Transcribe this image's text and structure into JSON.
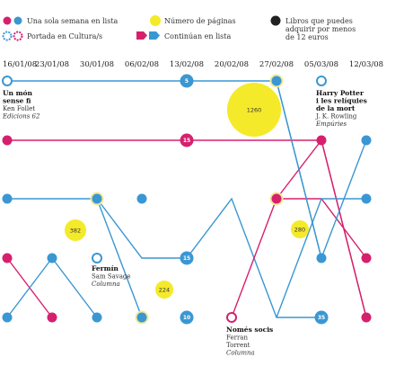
{
  "colors": {
    "magenta": "#d6206e",
    "blue": "#3a97d3",
    "yellow": "#f4ea2a",
    "yellow_ring": "#f1ea95",
    "black": "#222222",
    "grid_line": "#aaaaaa"
  },
  "legend": {
    "one_week": "Una sola semana en lista",
    "cover": "Portada en Cultura/s",
    "pages": "Número de páginas",
    "continue": "Continúan en lista",
    "affordable": "Libros que puedes adquirir por menos de 12 euros"
  },
  "chart_data": {
    "type": "line",
    "dates": [
      "16/01/08",
      "23/01/08",
      "30/01/08",
      "06/02/08",
      "13/02/08",
      "20/02/08",
      "27/02/08",
      "05/03/08",
      "12/03/08"
    ],
    "rank_levels": [
      1,
      2,
      3,
      4,
      5
    ],
    "page_counts": [
      {
        "value": 1260,
        "book": "Un món sense fi"
      },
      {
        "value": 382
      },
      {
        "value": 280
      },
      {
        "value": 224
      }
    ],
    "circle_numbers": [
      "5",
      "15",
      "15",
      "10",
      "35"
    ],
    "books": [
      {
        "title": "Un món sense fi",
        "author": "Ken Follet",
        "publisher": "Edicions 62"
      },
      {
        "title": "Harry Potter i les relíquies de la mort",
        "author": "J. K. Rowling",
        "publisher": "Empúries"
      },
      {
        "title": "Fermín",
        "author": "Sam Savage",
        "publisher": "Columna"
      },
      {
        "title": "Només socis",
        "author": "Ferran Torrent",
        "publisher": "Columna"
      }
    ]
  }
}
